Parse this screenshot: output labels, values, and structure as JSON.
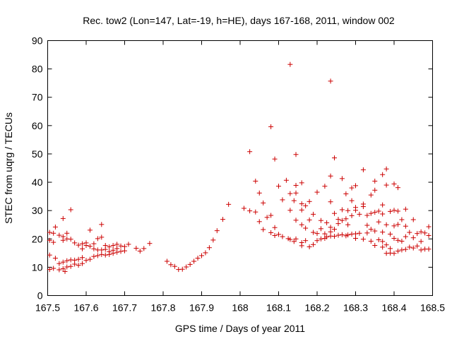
{
  "chart_data": {
    "type": "scatter",
    "title": "Rec. tow2 (Lon=147, Lat=-19, h=HE), days 167-168, 2011, window 002",
    "xlabel": "GPS time / Days of year 2011",
    "ylabel": "STEC from uqrg / TECUs",
    "xlim": [
      167.5,
      168.5
    ],
    "ylim": [
      0,
      90
    ],
    "xticks": [
      "167.5",
      "167.6",
      "167.7",
      "167.8",
      "167.9",
      "168",
      "168.1",
      "168.2",
      "168.3",
      "168.4",
      "168.5"
    ],
    "yticks": [
      "0",
      "10",
      "20",
      "30",
      "40",
      "50",
      "60",
      "70",
      "80",
      "90"
    ],
    "marker": "plus",
    "color": "#cc0000",
    "series": [
      {
        "name": "STEC",
        "points": [
          [
            167.505,
            22.3
          ],
          [
            167.505,
            19.5
          ],
          [
            167.505,
            14.3
          ],
          [
            167.505,
            9.2
          ],
          [
            167.515,
            22.0
          ],
          [
            167.515,
            18.8
          ],
          [
            167.515,
            9.6
          ],
          [
            167.52,
            24.2
          ],
          [
            167.52,
            13.2
          ],
          [
            167.53,
            21.3
          ],
          [
            167.53,
            11.3
          ],
          [
            167.53,
            9.1
          ],
          [
            167.54,
            27.2
          ],
          [
            167.54,
            20.8
          ],
          [
            167.54,
            19.5
          ],
          [
            167.54,
            11.8
          ],
          [
            167.54,
            9.5
          ],
          [
            167.545,
            8.5
          ],
          [
            167.55,
            22.0
          ],
          [
            167.55,
            20.0
          ],
          [
            167.55,
            12.3
          ],
          [
            167.55,
            10.1
          ],
          [
            167.56,
            30.3
          ],
          [
            167.56,
            19.9
          ],
          [
            167.56,
            12.6
          ],
          [
            167.56,
            10.3
          ],
          [
            167.57,
            18.6
          ],
          [
            167.57,
            12.5
          ],
          [
            167.57,
            11.1
          ],
          [
            167.58,
            17.8
          ],
          [
            167.58,
            12.8
          ],
          [
            167.58,
            10.7
          ],
          [
            167.59,
            18.3
          ],
          [
            167.59,
            16.5
          ],
          [
            167.59,
            13.4
          ],
          [
            167.59,
            11.3
          ],
          [
            167.6,
            18.6
          ],
          [
            167.6,
            17.7
          ],
          [
            167.6,
            12.4
          ],
          [
            167.61,
            23.1
          ],
          [
            167.61,
            17.4
          ],
          [
            167.61,
            12.8
          ],
          [
            167.62,
            18.3
          ],
          [
            167.62,
            16.5
          ],
          [
            167.62,
            13.8
          ],
          [
            167.63,
            20.1
          ],
          [
            167.63,
            16.1
          ],
          [
            167.63,
            14.1
          ],
          [
            167.64,
            25.1
          ],
          [
            167.64,
            20.6
          ],
          [
            167.64,
            16.1
          ],
          [
            167.64,
            14.5
          ],
          [
            167.65,
            17.7
          ],
          [
            167.65,
            16.3
          ],
          [
            167.65,
            14.3
          ],
          [
            167.66,
            17.2
          ],
          [
            167.66,
            15.5
          ],
          [
            167.66,
            14.5
          ],
          [
            167.67,
            17.7
          ],
          [
            167.67,
            16.0
          ],
          [
            167.67,
            14.9
          ],
          [
            167.68,
            18.1
          ],
          [
            167.68,
            16.6
          ],
          [
            167.68,
            15.3
          ],
          [
            167.69,
            17.5
          ],
          [
            167.69,
            15.6
          ],
          [
            167.7,
            17.3
          ],
          [
            167.7,
            15.8
          ],
          [
            167.71,
            18.1
          ],
          [
            167.73,
            16.7
          ],
          [
            167.74,
            15.7
          ],
          [
            167.75,
            16.6
          ],
          [
            167.765,
            18.4
          ],
          [
            167.81,
            12.1
          ],
          [
            167.82,
            10.9
          ],
          [
            167.83,
            10.3
          ],
          [
            167.84,
            9.2
          ],
          [
            167.85,
            9.3
          ],
          [
            167.86,
            10.1
          ],
          [
            167.87,
            11.0
          ],
          [
            167.88,
            12.1
          ],
          [
            167.89,
            13.2
          ],
          [
            167.9,
            14.1
          ],
          [
            167.91,
            15.1
          ],
          [
            167.92,
            16.9
          ],
          [
            167.93,
            19.6
          ],
          [
            167.94,
            22.9
          ],
          [
            167.955,
            26.9
          ],
          [
            167.97,
            32.2
          ],
          [
            168.01,
            30.8
          ],
          [
            168.025,
            29.9
          ],
          [
            168.025,
            50.8
          ],
          [
            168.04,
            29.5
          ],
          [
            168.04,
            40.4
          ],
          [
            168.05,
            36.2
          ],
          [
            168.05,
            26.1
          ],
          [
            168.06,
            32.7
          ],
          [
            168.06,
            23.3
          ],
          [
            168.07,
            27.6
          ],
          [
            168.08,
            59.6
          ],
          [
            168.08,
            28.3
          ],
          [
            168.08,
            22.2
          ],
          [
            168.09,
            48.2
          ],
          [
            168.09,
            24.0
          ],
          [
            168.09,
            21.2
          ],
          [
            168.1,
            38.6
          ],
          [
            168.1,
            21.6
          ],
          [
            168.11,
            33.8
          ],
          [
            168.11,
            20.8
          ],
          [
            168.12,
            40.7
          ],
          [
            168.125,
            20.1
          ],
          [
            168.13,
            81.6
          ],
          [
            168.13,
            36.0
          ],
          [
            168.13,
            30.1
          ],
          [
            168.13,
            19.8
          ],
          [
            168.14,
            33.5
          ],
          [
            168.14,
            19.1
          ],
          [
            168.145,
            49.8
          ],
          [
            168.145,
            38.9
          ],
          [
            168.145,
            36.2
          ],
          [
            168.145,
            26.6
          ],
          [
            168.145,
            20.0
          ],
          [
            168.16,
            39.8
          ],
          [
            168.16,
            32.4
          ],
          [
            168.16,
            30.2
          ],
          [
            168.16,
            25.0
          ],
          [
            168.16,
            18.7
          ],
          [
            168.16,
            17.6
          ],
          [
            168.17,
            31.7
          ],
          [
            168.17,
            23.8
          ],
          [
            168.17,
            19.4
          ],
          [
            168.18,
            33.2
          ],
          [
            168.18,
            26.7
          ],
          [
            168.18,
            17.2
          ],
          [
            168.19,
            28.7
          ],
          [
            168.19,
            22.3
          ],
          [
            168.19,
            18.0
          ],
          [
            168.2,
            36.5
          ],
          [
            168.2,
            21.9
          ],
          [
            168.2,
            19.4
          ],
          [
            168.21,
            26.5
          ],
          [
            168.21,
            23.6
          ],
          [
            168.21,
            20.0
          ],
          [
            168.22,
            38.6
          ],
          [
            168.22,
            21.8
          ],
          [
            168.22,
            20.2
          ],
          [
            168.225,
            25.7
          ],
          [
            168.225,
            20.7
          ],
          [
            168.235,
            75.7
          ],
          [
            168.235,
            42.2
          ],
          [
            168.235,
            33.1
          ],
          [
            168.235,
            24.1
          ],
          [
            168.235,
            22.5
          ],
          [
            168.235,
            21.0
          ],
          [
            168.245,
            48.6
          ],
          [
            168.245,
            29.0
          ],
          [
            168.245,
            23.4
          ],
          [
            168.245,
            20.9
          ],
          [
            168.255,
            26.9
          ],
          [
            168.255,
            25.4
          ],
          [
            168.255,
            21.3
          ],
          [
            168.265,
            41.3
          ],
          [
            168.265,
            30.3
          ],
          [
            168.265,
            26.5
          ],
          [
            168.265,
            21.5
          ],
          [
            168.275,
            35.9
          ],
          [
            168.275,
            27.1
          ],
          [
            168.275,
            21.1
          ],
          [
            168.28,
            30.0
          ],
          [
            168.28,
            25.0
          ],
          [
            168.28,
            21.4
          ],
          [
            168.29,
            38.0
          ],
          [
            168.29,
            33.5
          ],
          [
            168.29,
            28.2
          ],
          [
            168.29,
            21.7
          ],
          [
            168.3,
            38.8
          ],
          [
            168.3,
            31.1
          ],
          [
            168.3,
            30.1
          ],
          [
            168.3,
            21.8
          ],
          [
            168.3,
            20.2
          ],
          [
            168.31,
            28.7
          ],
          [
            168.31,
            22.0
          ],
          [
            168.32,
            44.4
          ],
          [
            168.32,
            32.3
          ],
          [
            168.32,
            31.4
          ],
          [
            168.32,
            19.9
          ],
          [
            168.33,
            28.3
          ],
          [
            168.33,
            24.8
          ],
          [
            168.33,
            22.1
          ],
          [
            168.34,
            35.5
          ],
          [
            168.34,
            29.0
          ],
          [
            168.34,
            23.4
          ],
          [
            168.34,
            19.2
          ],
          [
            168.35,
            40.4
          ],
          [
            168.35,
            37.2
          ],
          [
            168.35,
            29.4
          ],
          [
            168.35,
            22.8
          ],
          [
            168.35,
            17.7
          ],
          [
            168.36,
            29.8
          ],
          [
            168.36,
            26.0
          ],
          [
            168.36,
            19.7
          ],
          [
            168.37,
            42.7
          ],
          [
            168.37,
            32.0
          ],
          [
            168.37,
            28.8
          ],
          [
            168.37,
            22.4
          ],
          [
            168.37,
            19.1
          ],
          [
            168.37,
            17.1
          ],
          [
            168.38,
            44.7
          ],
          [
            168.38,
            39.0
          ],
          [
            168.38,
            25.0
          ],
          [
            168.38,
            17.9
          ],
          [
            168.38,
            14.9
          ],
          [
            168.39,
            29.7
          ],
          [
            168.39,
            21.7
          ],
          [
            168.39,
            16.6
          ],
          [
            168.39,
            15.0
          ],
          [
            168.4,
            39.4
          ],
          [
            168.4,
            30.1
          ],
          [
            168.4,
            24.6
          ],
          [
            168.4,
            20.2
          ],
          [
            168.4,
            14.9
          ],
          [
            168.41,
            38.1
          ],
          [
            168.41,
            29.8
          ],
          [
            168.41,
            25.1
          ],
          [
            168.41,
            19.5
          ],
          [
            168.41,
            15.7
          ],
          [
            168.42,
            26.8
          ],
          [
            168.42,
            19.2
          ],
          [
            168.42,
            16.1
          ],
          [
            168.43,
            30.5
          ],
          [
            168.43,
            24.5
          ],
          [
            168.43,
            20.8
          ],
          [
            168.43,
            16.3
          ],
          [
            168.44,
            22.3
          ],
          [
            168.44,
            17.1
          ],
          [
            168.45,
            26.8
          ],
          [
            168.45,
            20.4
          ],
          [
            168.45,
            16.8
          ],
          [
            168.46,
            21.9
          ],
          [
            168.46,
            17.5
          ],
          [
            168.47,
            22.5
          ],
          [
            168.47,
            19.1
          ],
          [
            168.47,
            16.1
          ],
          [
            168.48,
            22.1
          ],
          [
            168.48,
            16.4
          ],
          [
            168.49,
            24.3
          ],
          [
            168.49,
            21.2
          ],
          [
            168.49,
            16.4
          ]
        ]
      }
    ]
  }
}
